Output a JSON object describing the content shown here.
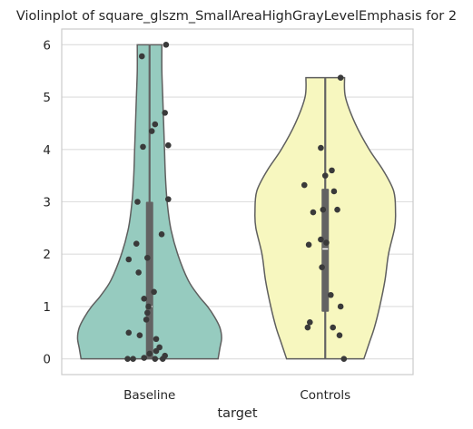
{
  "chart_data": {
    "type": "violin",
    "title": "Violinplot of square_glszm_SmallAreaHighGrayLevelEmphasis for 2",
    "xlabel": "target",
    "ylabel": "",
    "categories": [
      "Baseline",
      "Controls"
    ],
    "ylim": [
      -0.3,
      6.3
    ],
    "yticks": [
      0,
      1,
      2,
      3,
      4,
      5,
      6
    ],
    "grid": "horizontal",
    "colors": {
      "Baseline": "#96cbbf",
      "Controls": "#f7f7bf",
      "outline": "#5f5f5f",
      "points": "#3a3a3a",
      "box": "#636363",
      "grid": "#dddddd"
    },
    "violins": [
      {
        "category": "Baseline",
        "min": 0,
        "max": 6,
        "q1": 0.0,
        "median": 1.0,
        "q3": 3.0,
        "profile": [
          [
            0,
            0.78
          ],
          [
            0.2,
            0.8
          ],
          [
            0.4,
            0.82
          ],
          [
            0.6,
            0.8
          ],
          [
            0.8,
            0.74
          ],
          [
            1.0,
            0.66
          ],
          [
            1.2,
            0.56
          ],
          [
            1.5,
            0.44
          ],
          [
            2.0,
            0.32
          ],
          [
            2.5,
            0.24
          ],
          [
            3.0,
            0.2
          ],
          [
            3.5,
            0.18
          ],
          [
            4.0,
            0.17
          ],
          [
            4.5,
            0.16
          ],
          [
            5.0,
            0.15
          ],
          [
            5.5,
            0.14
          ],
          [
            6.0,
            0.14
          ]
        ],
        "points": [
          {
            "x": -0.2,
            "y": 0.0
          },
          {
            "x": -0.15,
            "y": 0.0
          },
          {
            "x": -0.05,
            "y": 0.02
          },
          {
            "x": 0.05,
            "y": 0.0
          },
          {
            "x": 0.12,
            "y": 0.0
          },
          {
            "x": 0.14,
            "y": 0.06
          },
          {
            "x": 0.0,
            "y": 0.1
          },
          {
            "x": 0.06,
            "y": 0.15
          },
          {
            "x": 0.09,
            "y": 0.22
          },
          {
            "x": -0.09,
            "y": 0.45
          },
          {
            "x": 0.06,
            "y": 0.38
          },
          {
            "x": -0.19,
            "y": 0.5
          },
          {
            "x": -0.03,
            "y": 0.75
          },
          {
            "x": -0.02,
            "y": 0.88
          },
          {
            "x": -0.01,
            "y": 1.0
          },
          {
            "x": -0.05,
            "y": 1.15
          },
          {
            "x": 0.04,
            "y": 1.28
          },
          {
            "x": -0.1,
            "y": 1.65
          },
          {
            "x": -0.19,
            "y": 1.9
          },
          {
            "x": -0.02,
            "y": 1.93
          },
          {
            "x": -0.12,
            "y": 2.2
          },
          {
            "x": 0.11,
            "y": 2.38
          },
          {
            "x": -0.11,
            "y": 3.0
          },
          {
            "x": 0.17,
            "y": 3.05
          },
          {
            "x": -0.06,
            "y": 4.05
          },
          {
            "x": 0.17,
            "y": 4.08
          },
          {
            "x": 0.02,
            "y": 4.35
          },
          {
            "x": 0.05,
            "y": 4.48
          },
          {
            "x": 0.14,
            "y": 4.7
          },
          {
            "x": -0.07,
            "y": 5.78
          },
          {
            "x": 0.15,
            "y": 6.0
          }
        ]
      },
      {
        "category": "Controls",
        "min": 0,
        "max": 5.37,
        "q1": 0.9,
        "median": 2.1,
        "q3": 3.25,
        "profile": [
          [
            0,
            0.44
          ],
          [
            0.3,
            0.5
          ],
          [
            0.6,
            0.56
          ],
          [
            1.0,
            0.62
          ],
          [
            1.5,
            0.68
          ],
          [
            2.0,
            0.72
          ],
          [
            2.5,
            0.79
          ],
          [
            2.8,
            0.8
          ],
          [
            3.2,
            0.78
          ],
          [
            3.6,
            0.66
          ],
          [
            4.0,
            0.5
          ],
          [
            4.5,
            0.34
          ],
          [
            5.0,
            0.23
          ],
          [
            5.37,
            0.22
          ]
        ],
        "points": [
          {
            "x": 0.17,
            "y": 0.0
          },
          {
            "x": 0.13,
            "y": 0.45
          },
          {
            "x": -0.16,
            "y": 0.6
          },
          {
            "x": 0.07,
            "y": 0.6
          },
          {
            "x": -0.14,
            "y": 0.7
          },
          {
            "x": 0.14,
            "y": 1.0
          },
          {
            "x": 0.05,
            "y": 1.22
          },
          {
            "x": -0.03,
            "y": 1.75
          },
          {
            "x": -0.15,
            "y": 2.18
          },
          {
            "x": -0.04,
            "y": 2.28
          },
          {
            "x": 0.01,
            "y": 2.22
          },
          {
            "x": -0.11,
            "y": 2.8
          },
          {
            "x": -0.02,
            "y": 2.85
          },
          {
            "x": 0.11,
            "y": 2.85
          },
          {
            "x": 0.08,
            "y": 3.2
          },
          {
            "x": -0.19,
            "y": 3.32
          },
          {
            "x": 0.0,
            "y": 3.5
          },
          {
            "x": 0.06,
            "y": 3.6
          },
          {
            "x": -0.04,
            "y": 4.03
          },
          {
            "x": 0.14,
            "y": 5.37
          }
        ]
      }
    ]
  }
}
